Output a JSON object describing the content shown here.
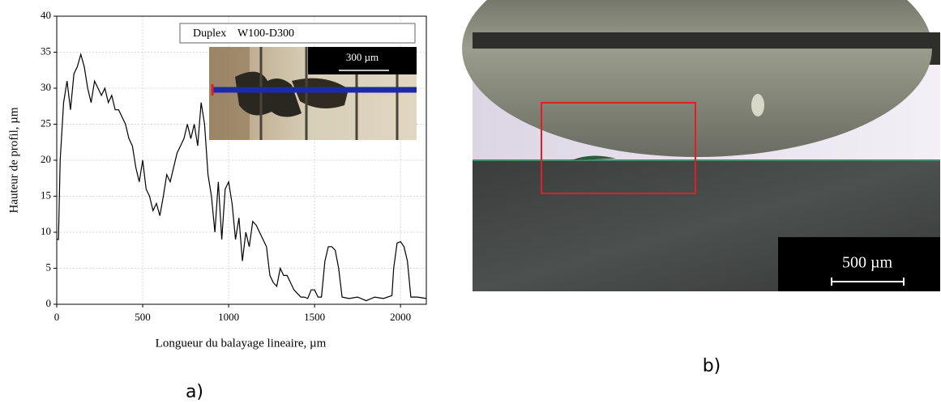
{
  "chart_data": {
    "type": "line",
    "x_label": "Longueur du balayage lineaire, µm",
    "y_label": "Hauteur de profil, µm",
    "x": [
      0,
      10,
      20,
      40,
      60,
      80,
      100,
      120,
      140,
      160,
      180,
      200,
      220,
      240,
      260,
      280,
      300,
      320,
      340,
      360,
      380,
      400,
      420,
      440,
      460,
      480,
      500,
      520,
      540,
      560,
      580,
      600,
      620,
      640,
      660,
      680,
      700,
      720,
      740,
      760,
      780,
      800,
      820,
      840,
      860,
      880,
      900,
      920,
      940,
      960,
      980,
      1000,
      1020,
      1040,
      1060,
      1080,
      1100,
      1120,
      1140,
      1160,
      1180,
      1200,
      1220,
      1240,
      1260,
      1280,
      1300,
      1320,
      1340,
      1360,
      1380,
      1400,
      1420,
      1440,
      1460,
      1480,
      1500,
      1520,
      1540,
      1560,
      1580,
      1600,
      1620,
      1640,
      1660,
      1700,
      1750,
      1800,
      1850,
      1900,
      1950,
      1960,
      1980,
      2000,
      2020,
      2040,
      2060,
      2100,
      2150
    ],
    "series": [
      {
        "name": "Duplex    W100-D300",
        "color": "#000000",
        "values": [
          9,
          9,
          20,
          28,
          31,
          27,
          32,
          33,
          34.7,
          33,
          30,
          28,
          31,
          30,
          29,
          30,
          28,
          29,
          27,
          27,
          26,
          25,
          23,
          22,
          19,
          17,
          20,
          16,
          15,
          13,
          14,
          12.3,
          15,
          18,
          17,
          19,
          21,
          22,
          23,
          25,
          23,
          25,
          22,
          28,
          25,
          18,
          15,
          10,
          17,
          9,
          16,
          17,
          14,
          9,
          12,
          6,
          10,
          8,
          11.5,
          11,
          10,
          9,
          8,
          4,
          3,
          2.5,
          5,
          4,
          4,
          3,
          2,
          1.5,
          1,
          1,
          0.8,
          2,
          2,
          1,
          1,
          6,
          8,
          8,
          7.5,
          5,
          1,
          0.8,
          1,
          0.5,
          1,
          0.8,
          1.2,
          5,
          8.5,
          8.7,
          8,
          6,
          1,
          1,
          0.8
        ]
      }
    ],
    "xlim": [
      0,
      2150
    ],
    "xticks": [
      0,
      500,
      1000,
      1500,
      2000
    ],
    "ylim": [
      0,
      40
    ],
    "yticks": [
      0,
      5,
      10,
      15,
      20,
      25,
      30,
      35,
      40
    ],
    "grid": true,
    "inset_scale_label": "300 µm",
    "caption": "a)"
  },
  "photo": {
    "scale_label": "500 µm",
    "caption": "b)"
  }
}
